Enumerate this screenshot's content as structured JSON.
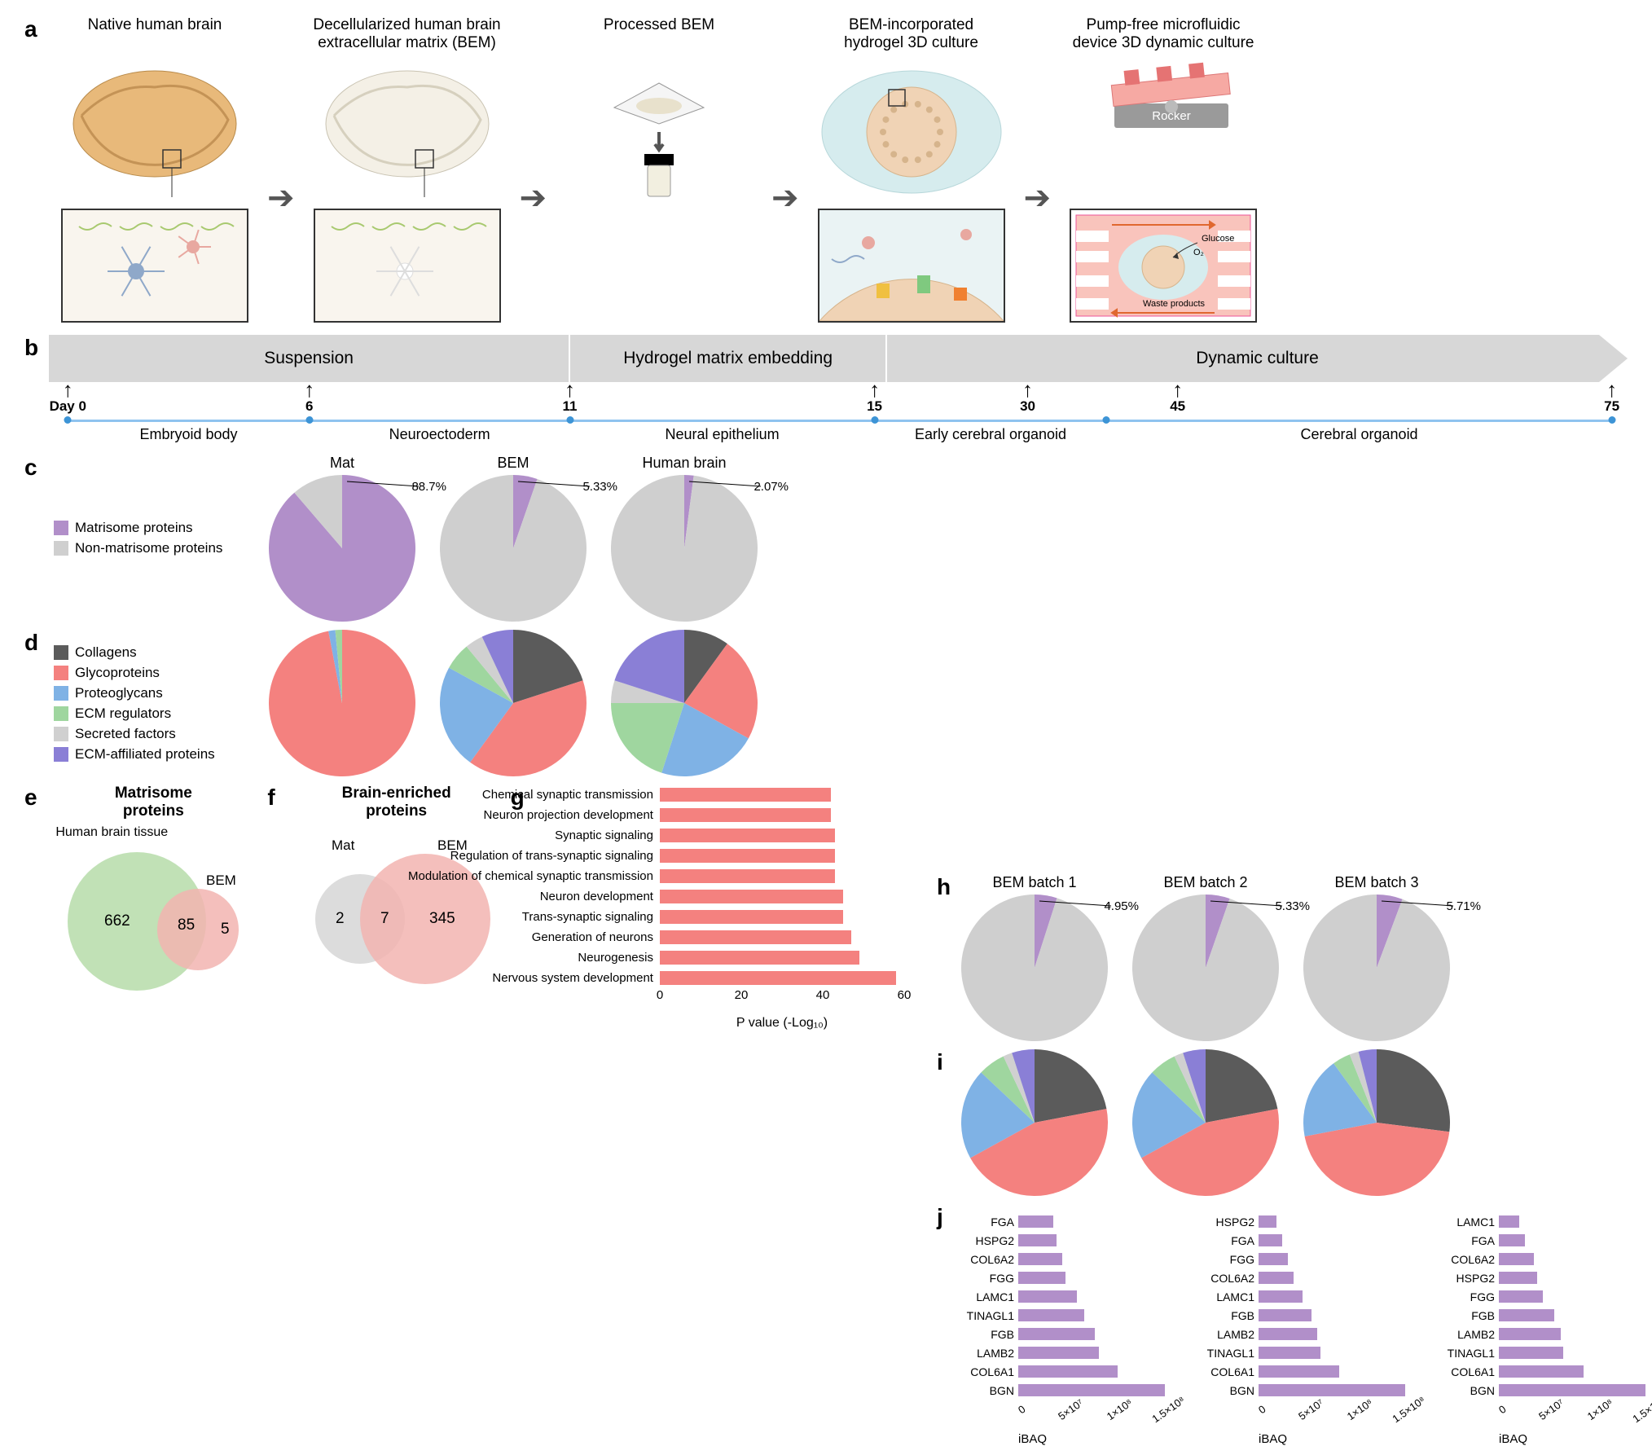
{
  "colors": {
    "matrisome": "#b18fc9",
    "nonMatrisome": "#cfcfcf",
    "collagens": "#5b5b5b",
    "glycoproteins": "#f4817f",
    "proteoglycans": "#7fb2e5",
    "ecmRegulators": "#9fd69f",
    "secretedFactors": "#d0d0d0",
    "ecmAffiliated": "#8a7fd6",
    "vennGreen": "#b6dca9",
    "vennPink": "#f2b4b0",
    "vennGray": "#d8d8d8",
    "barPink": "#f4817f",
    "barPurple": "#b18fc9",
    "lineBlue": "#8fc3ef",
    "dotBlue": "#3d94d6",
    "timelineGray": "#d7d7d7"
  },
  "panelA": {
    "steps": [
      {
        "title": "Native human brain"
      },
      {
        "title": "Decellularized human brain\nextracellular matrix (BEM)"
      },
      {
        "title": "Processed BEM"
      },
      {
        "title": "BEM-incorporated\nhydrogel 3D culture"
      },
      {
        "title": "Pump-free microfluidic\ndevice 3D dynamic culture"
      }
    ],
    "insetLabels": {
      "rocker": "Rocker",
      "glucose": "Glucose",
      "o2": "O₂",
      "waste": "Waste products"
    }
  },
  "panelB": {
    "phases": [
      {
        "label": "Suspension",
        "widthPct": 33
      },
      {
        "label": "Hydrogel matrix embedding",
        "widthPct": 20
      },
      {
        "label": "Dynamic culture",
        "widthPct": 47
      }
    ],
    "days": [
      {
        "label": "Day 0",
        "posPct": 1.2
      },
      {
        "label": "6",
        "posPct": 16.5
      },
      {
        "label": "11",
        "posPct": 33
      },
      {
        "label": "15",
        "posPct": 52.3
      },
      {
        "label": "30",
        "posPct": 62
      },
      {
        "label": "45",
        "posPct": 71.5
      },
      {
        "label": "75",
        "posPct": 99
      }
    ],
    "stages": [
      {
        "label": "Embryoid body",
        "startPct": 1.2,
        "endPct": 16.5
      },
      {
        "label": "Neuroectoderm",
        "startPct": 16.5,
        "endPct": 33
      },
      {
        "label": "Neural epithelium",
        "startPct": 33,
        "endPct": 52.3
      },
      {
        "label": "Early cerebral organoid",
        "startPct": 52.3,
        "endPct": 67
      },
      {
        "label": "Cerebral organoid",
        "startPct": 67,
        "endPct": 99
      }
    ]
  },
  "panelC": {
    "legend": [
      {
        "label": "Matrisome proteins",
        "colorKey": "matrisome"
      },
      {
        "label": "Non-matrisome proteins",
        "colorKey": "nonMatrisome"
      }
    ],
    "pies": [
      {
        "title": "Mat",
        "pct": "88.7%",
        "slices": [
          {
            "colorKey": "matrisome",
            "frac": 0.887
          },
          {
            "colorKey": "nonMatrisome",
            "frac": 0.113
          }
        ]
      },
      {
        "title": "BEM",
        "pct": "5.33%",
        "slices": [
          {
            "colorKey": "matrisome",
            "frac": 0.0533
          },
          {
            "colorKey": "nonMatrisome",
            "frac": 0.9467
          }
        ]
      },
      {
        "title": "Human brain",
        "pct": "2.07%",
        "slices": [
          {
            "colorKey": "matrisome",
            "frac": 0.0207
          },
          {
            "colorKey": "nonMatrisome",
            "frac": 0.9793
          }
        ]
      }
    ]
  },
  "panelD": {
    "legend": [
      {
        "label": "Collagens",
        "colorKey": "collagens"
      },
      {
        "label": "Glycoproteins",
        "colorKey": "glycoproteins"
      },
      {
        "label": "Proteoglycans",
        "colorKey": "proteoglycans"
      },
      {
        "label": "ECM regulators",
        "colorKey": "ecmRegulators"
      },
      {
        "label": "Secreted factors",
        "colorKey": "secretedFactors"
      },
      {
        "label": "ECM-affiliated proteins",
        "colorKey": "ecmAffiliated"
      }
    ],
    "pies": [
      {
        "slices": [
          {
            "colorKey": "glycoproteins",
            "frac": 0.97
          },
          {
            "colorKey": "proteoglycans",
            "frac": 0.015
          },
          {
            "colorKey": "ecmRegulators",
            "frac": 0.015
          }
        ]
      },
      {
        "slices": [
          {
            "colorKey": "collagens",
            "frac": 0.2
          },
          {
            "colorKey": "glycoproteins",
            "frac": 0.4
          },
          {
            "colorKey": "proteoglycans",
            "frac": 0.23
          },
          {
            "colorKey": "ecmRegulators",
            "frac": 0.06
          },
          {
            "colorKey": "secretedFactors",
            "frac": 0.04
          },
          {
            "colorKey": "ecmAffiliated",
            "frac": 0.07
          }
        ]
      },
      {
        "slices": [
          {
            "colorKey": "collagens",
            "frac": 0.1
          },
          {
            "colorKey": "glycoproteins",
            "frac": 0.23
          },
          {
            "colorKey": "proteoglycans",
            "frac": 0.22
          },
          {
            "colorKey": "ecmRegulators",
            "frac": 0.2
          },
          {
            "colorKey": "secretedFactors",
            "frac": 0.05
          },
          {
            "colorKey": "ecmAffiliated",
            "frac": 0.2
          }
        ]
      }
    ]
  },
  "panelE": {
    "title": "Matrisome\nproteins",
    "outerLabel": "Human brain tissue",
    "leftN": "662",
    "midN": "85",
    "rightN": "5",
    "rightLabel": "BEM"
  },
  "panelF": {
    "title": "Brain-enriched\nproteins",
    "leftLabel": "Mat",
    "rightLabel": "BEM",
    "leftN": "2",
    "midN": "7",
    "rightN": "345"
  },
  "panelG": {
    "items": [
      {
        "label": "Chemical synaptic transmission",
        "val": 42
      },
      {
        "label": "Neuron projection development",
        "val": 42
      },
      {
        "label": "Synaptic signaling",
        "val": 43
      },
      {
        "label": "Regulation of trans-synaptic signaling",
        "val": 43
      },
      {
        "label": "Modulation of chemical synaptic transmission",
        "val": 43
      },
      {
        "label": "Neuron development",
        "val": 45
      },
      {
        "label": "Trans-synaptic signaling",
        "val": 45
      },
      {
        "label": "Generation of neurons",
        "val": 47
      },
      {
        "label": "Neurogenesis",
        "val": 49
      },
      {
        "label": "Nervous system development",
        "val": 58
      }
    ],
    "xmax": 60,
    "ticks": [
      0,
      20,
      40,
      60
    ],
    "xlabel": "P value (-Log₁₀)",
    "pxPerUnit": 5.0
  },
  "panelH": {
    "pies": [
      {
        "title": "BEM batch 1",
        "pct": "4.95%",
        "slices": [
          {
            "colorKey": "matrisome",
            "frac": 0.0495
          },
          {
            "colorKey": "nonMatrisome",
            "frac": 0.9505
          }
        ]
      },
      {
        "title": "BEM batch 2",
        "pct": "5.33%",
        "slices": [
          {
            "colorKey": "matrisome",
            "frac": 0.0533
          },
          {
            "colorKey": "nonMatrisome",
            "frac": 0.9467
          }
        ]
      },
      {
        "title": "BEM batch 3",
        "pct": "5.71%",
        "slices": [
          {
            "colorKey": "matrisome",
            "frac": 0.0571
          },
          {
            "colorKey": "nonMatrisome",
            "frac": 0.9429
          }
        ]
      }
    ]
  },
  "panelI": {
    "pies": [
      {
        "slices": [
          {
            "colorKey": "collagens",
            "frac": 0.22
          },
          {
            "colorKey": "glycoproteins",
            "frac": 0.45
          },
          {
            "colorKey": "proteoglycans",
            "frac": 0.2
          },
          {
            "colorKey": "ecmRegulators",
            "frac": 0.06
          },
          {
            "colorKey": "secretedFactors",
            "frac": 0.02
          },
          {
            "colorKey": "ecmAffiliated",
            "frac": 0.05
          }
        ]
      },
      {
        "slices": [
          {
            "colorKey": "collagens",
            "frac": 0.22
          },
          {
            "colorKey": "glycoproteins",
            "frac": 0.45
          },
          {
            "colorKey": "proteoglycans",
            "frac": 0.2
          },
          {
            "colorKey": "ecmRegulators",
            "frac": 0.06
          },
          {
            "colorKey": "secretedFactors",
            "frac": 0.02
          },
          {
            "colorKey": "ecmAffiliated",
            "frac": 0.05
          }
        ]
      },
      {
        "slices": [
          {
            "colorKey": "collagens",
            "frac": 0.27
          },
          {
            "colorKey": "glycoproteins",
            "frac": 0.45
          },
          {
            "colorKey": "proteoglycans",
            "frac": 0.18
          },
          {
            "colorKey": "ecmRegulators",
            "frac": 0.04
          },
          {
            "colorKey": "secretedFactors",
            "frac": 0.02
          },
          {
            "colorKey": "ecmAffiliated",
            "frac": 0.04
          }
        ]
      }
    ]
  },
  "panelJ": {
    "xlabel": "iBAQ",
    "ticklabels": [
      "0",
      "5×10⁷",
      "1×10⁸",
      "1.5×10⁸"
    ],
    "maxPx": 180,
    "blocks": [
      {
        "items": [
          {
            "label": "FGA",
            "val": 24
          },
          {
            "label": "HSPG2",
            "val": 26
          },
          {
            "label": "COL6A2",
            "val": 30
          },
          {
            "label": "FGG",
            "val": 32
          },
          {
            "label": "LAMC1",
            "val": 40
          },
          {
            "label": "TINAGL1",
            "val": 45
          },
          {
            "label": "FGB",
            "val": 52
          },
          {
            "label": "LAMB2",
            "val": 55
          },
          {
            "label": "COL6A1",
            "val": 68
          },
          {
            "label": "BGN",
            "val": 100
          }
        ]
      },
      {
        "items": [
          {
            "label": "HSPG2",
            "val": 12
          },
          {
            "label": "FGA",
            "val": 16
          },
          {
            "label": "FGG",
            "val": 20
          },
          {
            "label": "COL6A2",
            "val": 24
          },
          {
            "label": "LAMC1",
            "val": 30
          },
          {
            "label": "FGB",
            "val": 36
          },
          {
            "label": "LAMB2",
            "val": 40
          },
          {
            "label": "TINAGL1",
            "val": 42
          },
          {
            "label": "COL6A1",
            "val": 55
          },
          {
            "label": "BGN",
            "val": 100
          }
        ]
      },
      {
        "items": [
          {
            "label": "LAMC1",
            "val": 14
          },
          {
            "label": "FGA",
            "val": 18
          },
          {
            "label": "COL6A2",
            "val": 24
          },
          {
            "label": "HSPG2",
            "val": 26
          },
          {
            "label": "FGG",
            "val": 30
          },
          {
            "label": "FGB",
            "val": 38
          },
          {
            "label": "LAMB2",
            "val": 42
          },
          {
            "label": "TINAGL1",
            "val": 44
          },
          {
            "label": "COL6A1",
            "val": 58
          },
          {
            "label": "BGN",
            "val": 100
          }
        ]
      }
    ]
  }
}
